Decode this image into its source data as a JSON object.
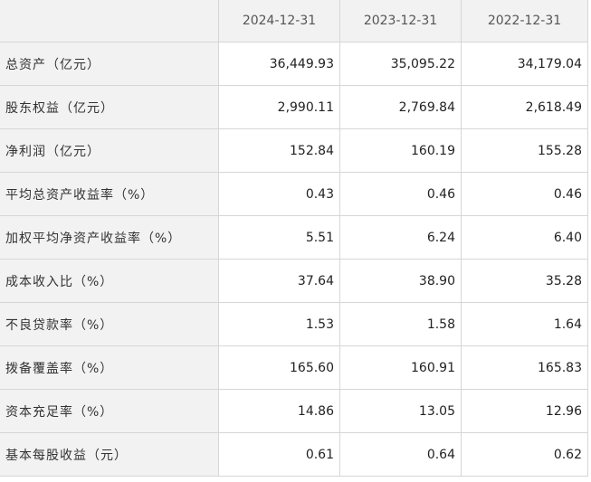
{
  "table": {
    "headers": [
      "",
      "2024-12-31",
      "2023-12-31",
      "2022-12-31"
    ],
    "rows": [
      {
        "label": "总资产（亿元）",
        "values": [
          "36,449.93",
          "35,095.22",
          "34,179.04"
        ]
      },
      {
        "label": "股东权益（亿元）",
        "values": [
          "2,990.11",
          "2,769.84",
          "2,618.49"
        ]
      },
      {
        "label": "净利润（亿元）",
        "values": [
          "152.84",
          "160.19",
          "155.28"
        ]
      },
      {
        "label": "平均总资产收益率（%）",
        "values": [
          "0.43",
          "0.46",
          "0.46"
        ]
      },
      {
        "label": "加权平均净资产收益率（%）",
        "values": [
          "5.51",
          "6.24",
          "6.40"
        ]
      },
      {
        "label": "成本收入比（%）",
        "values": [
          "37.64",
          "38.90",
          "35.28"
        ]
      },
      {
        "label": "不良贷款率（%）",
        "values": [
          "1.53",
          "1.58",
          "1.64"
        ]
      },
      {
        "label": "拨备覆盖率（%）",
        "values": [
          "165.60",
          "160.91",
          "165.83"
        ]
      },
      {
        "label": "资本充足率（%）",
        "values": [
          "14.86",
          "13.05",
          "12.96"
        ]
      },
      {
        "label": "基本每股收益（元）",
        "values": [
          "0.61",
          "0.64",
          "0.62"
        ]
      }
    ]
  }
}
